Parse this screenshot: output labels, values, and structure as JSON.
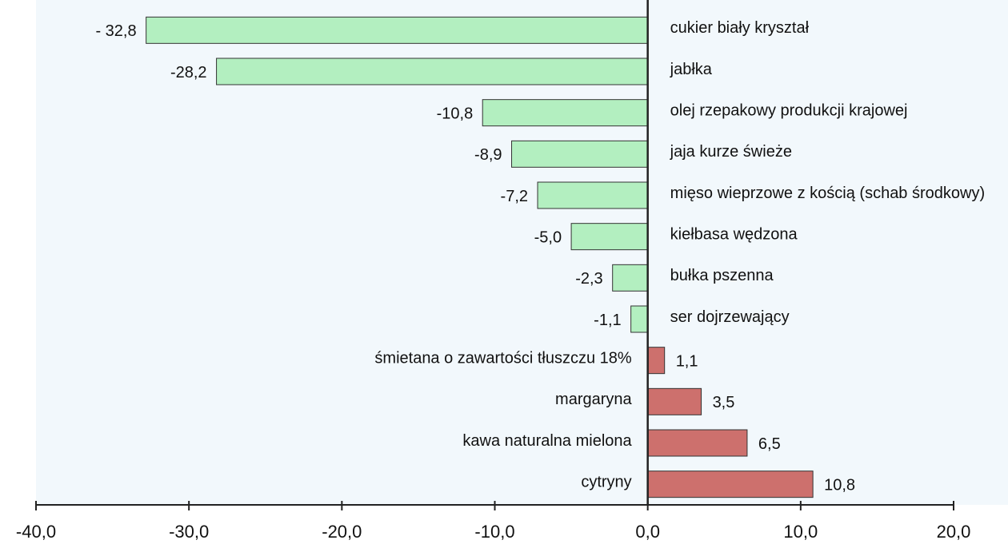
{
  "chart_data": {
    "type": "hbar",
    "categories": [
      "cukier biały kryształ",
      "jabłka",
      "olej rzepakowy produkcji krajowej",
      "jaja kurze świeże",
      "mięso wieprzowe z kością (schab środkowy)",
      "kiełbasa wędzona",
      "bułka pszenna",
      "ser dojrzewający",
      "śmietana o zawartości tłuszczu 18%",
      "margaryna",
      "kawa naturalna mielona",
      "cytryny"
    ],
    "values": [
      -32.8,
      -28.2,
      -10.8,
      -8.9,
      -7.2,
      -5.0,
      -2.3,
      -1.1,
      1.1,
      3.5,
      6.5,
      10.8
    ],
    "value_labels": [
      "- 32,8",
      "-28,2",
      "-10,8",
      "-8,9",
      "-7,2",
      "-5,0",
      "-2,3",
      "-1,1",
      "1,1",
      "3,5",
      "6,5",
      "10,8"
    ],
    "negative_color": "#b3efc0",
    "positive_color": "#cd706d",
    "xlim": [
      -40,
      20
    ],
    "xticks": [
      {
        "value": -40,
        "label": "-40,0"
      },
      {
        "value": -30,
        "label": "-30,0"
      },
      {
        "value": -20,
        "label": "-20,0"
      },
      {
        "value": -10,
        "label": "-10,0"
      },
      {
        "value": 0,
        "label": "0,0"
      },
      {
        "value": 10,
        "label": "10,0"
      },
      {
        "value": 20,
        "label": "20,0"
      }
    ]
  }
}
